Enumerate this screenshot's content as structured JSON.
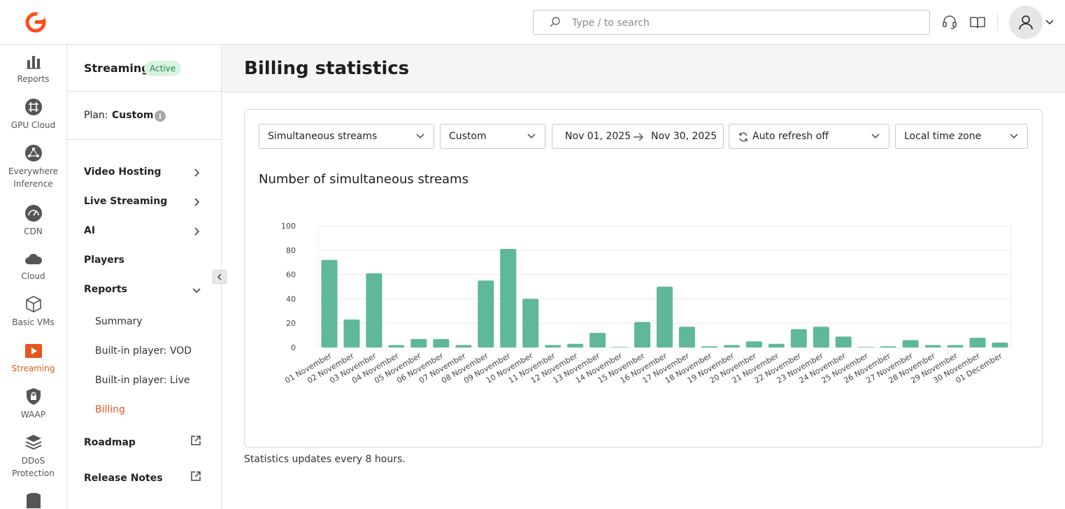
{
  "topbar": {
    "search_placeholder": "Type / to search",
    "icons": [
      "logo-icon",
      "search-icon",
      "support-headset-icon",
      "docs-book-icon",
      "user-avatar-icon",
      "chevron-down-icon"
    ]
  },
  "rail": {
    "items": [
      {
        "label": "Reports",
        "icon": "bar-chart-icon"
      },
      {
        "label": "GPU Cloud",
        "icon": "gpu-chip-icon"
      },
      {
        "label": "Everywhere Inference",
        "line1": "Everywhere",
        "line2": "Inference",
        "icon": "inference-network-icon"
      },
      {
        "label": "CDN",
        "icon": "speedometer-icon"
      },
      {
        "label": "Cloud",
        "icon": "cloud-icon"
      },
      {
        "label": "Basic VMs",
        "icon": "cube-icon"
      },
      {
        "label": "Streaming",
        "icon": "play-icon",
        "active": true
      },
      {
        "label": "WAAP",
        "icon": "shield-lock-icon"
      },
      {
        "label": "DDoS Protection",
        "line1": "DDoS",
        "line2": "Protection",
        "icon": "layers-icon"
      }
    ]
  },
  "subnav": {
    "title": "Streaming",
    "status_badge": "Active",
    "plan_label": "Plan:",
    "plan_value": "Custom",
    "items": [
      {
        "label": "Video Hosting"
      },
      {
        "label": "Live Streaming"
      },
      {
        "label": "AI"
      },
      {
        "label": "Players"
      },
      {
        "label": "Reports"
      },
      {
        "label": "Roadmap"
      },
      {
        "label": "Release Notes"
      }
    ],
    "report_subitems": [
      {
        "label": "Summary"
      },
      {
        "label": "Built-in player: VOD"
      },
      {
        "label": "Built-in player: Live"
      },
      {
        "label": "Billing",
        "active": true
      }
    ]
  },
  "page": {
    "title": "Billing statistics",
    "footnote": "Statistics updates every 8 hours."
  },
  "filters": {
    "metric": "Simultaneous streams",
    "period": "Custom",
    "date_from": "Nov 01, 2025",
    "date_to": "Nov 30, 2025",
    "auto_refresh": "Auto refresh off",
    "time_zone": "Local time zone"
  },
  "colors": {
    "accent": "#e4571e",
    "bar": "#5fb897",
    "badge_bg": "#d9f3e2",
    "badge_text": "#1f8a4c"
  },
  "chart_data": {
    "type": "bar",
    "title": "Number of simultaneous streams",
    "xlabel": "",
    "ylabel": "",
    "ylim": [
      0,
      100
    ],
    "yticks": [
      0,
      20,
      40,
      60,
      80,
      100
    ],
    "grid": true,
    "categories": [
      "01 November",
      "02 November",
      "03 November",
      "04 November",
      "05 November",
      "06 November",
      "07 November",
      "08 November",
      "09 November",
      "10 November",
      "11 November",
      "12 November",
      "13 November",
      "14 November",
      "15 November",
      "16 November",
      "17 November",
      "18 November",
      "19 November",
      "20 November",
      "21 November",
      "22 November",
      "23 November",
      "24 November",
      "25 November",
      "26 November",
      "27 November",
      "28 November",
      "29 November",
      "30 November",
      "01 December"
    ],
    "values": [
      72,
      23,
      61,
      2,
      7,
      7,
      2,
      55,
      81,
      40,
      2,
      3,
      12,
      0,
      21,
      50,
      17,
      1,
      2,
      5,
      3,
      15,
      17,
      9,
      0,
      1,
      6,
      2,
      2,
      8,
      4
    ]
  }
}
